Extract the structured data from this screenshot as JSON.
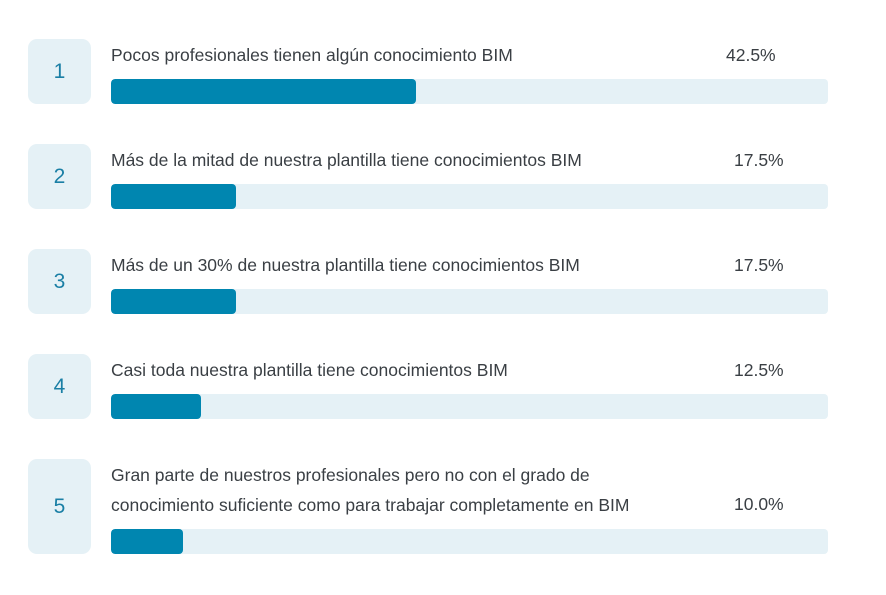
{
  "chart_data": {
    "type": "bar",
    "orientation": "horizontal",
    "categories": [
      "Pocos profesionales tienen algún conocimiento BIM",
      "Más de la mitad de nuestra plantilla tiene conocimientos BIM",
      "Más de un 30% de nuestra plantilla tiene conocimientos BIM",
      "Casi toda nuestra plantilla tiene conocimientos BIM",
      "Gran parte de nuestros profesionales pero no con el grado de\nconocimiento suficiente como para trabajar completamente en BIM"
    ],
    "values": [
      42.5,
      17.5,
      17.5,
      12.5,
      10.0
    ],
    "ylim": [
      0,
      100
    ],
    "unit": "%"
  },
  "rows": [
    {
      "number": "1",
      "label": "Pocos profesionales tienen algún conocimiento BIM",
      "percent_text": "42.5%",
      "value": 42.5
    },
    {
      "number": "2",
      "label": "Más de la mitad de nuestra plantilla tiene conocimientos BIM",
      "percent_text": "17.5%",
      "value": 17.5
    },
    {
      "number": "3",
      "label": "Más de un 30% de nuestra plantilla tiene conocimientos BIM",
      "percent_text": "17.5%",
      "value": 17.5
    },
    {
      "number": "4",
      "label": "Casi toda nuestra plantilla tiene conocimientos BIM",
      "percent_text": "12.5%",
      "value": 12.5
    },
    {
      "number": "5",
      "label": "Gran parte de nuestros profesionales pero no con el grado de\nconocimiento suficiente como para trabajar completamente en BIM",
      "percent_text": "10.0%",
      "value": 10.0
    }
  ],
  "colors": {
    "fill": "#0086b0",
    "track": "#e5f1f6",
    "number": "#1a7fa5",
    "text": "#3a3f44"
  }
}
